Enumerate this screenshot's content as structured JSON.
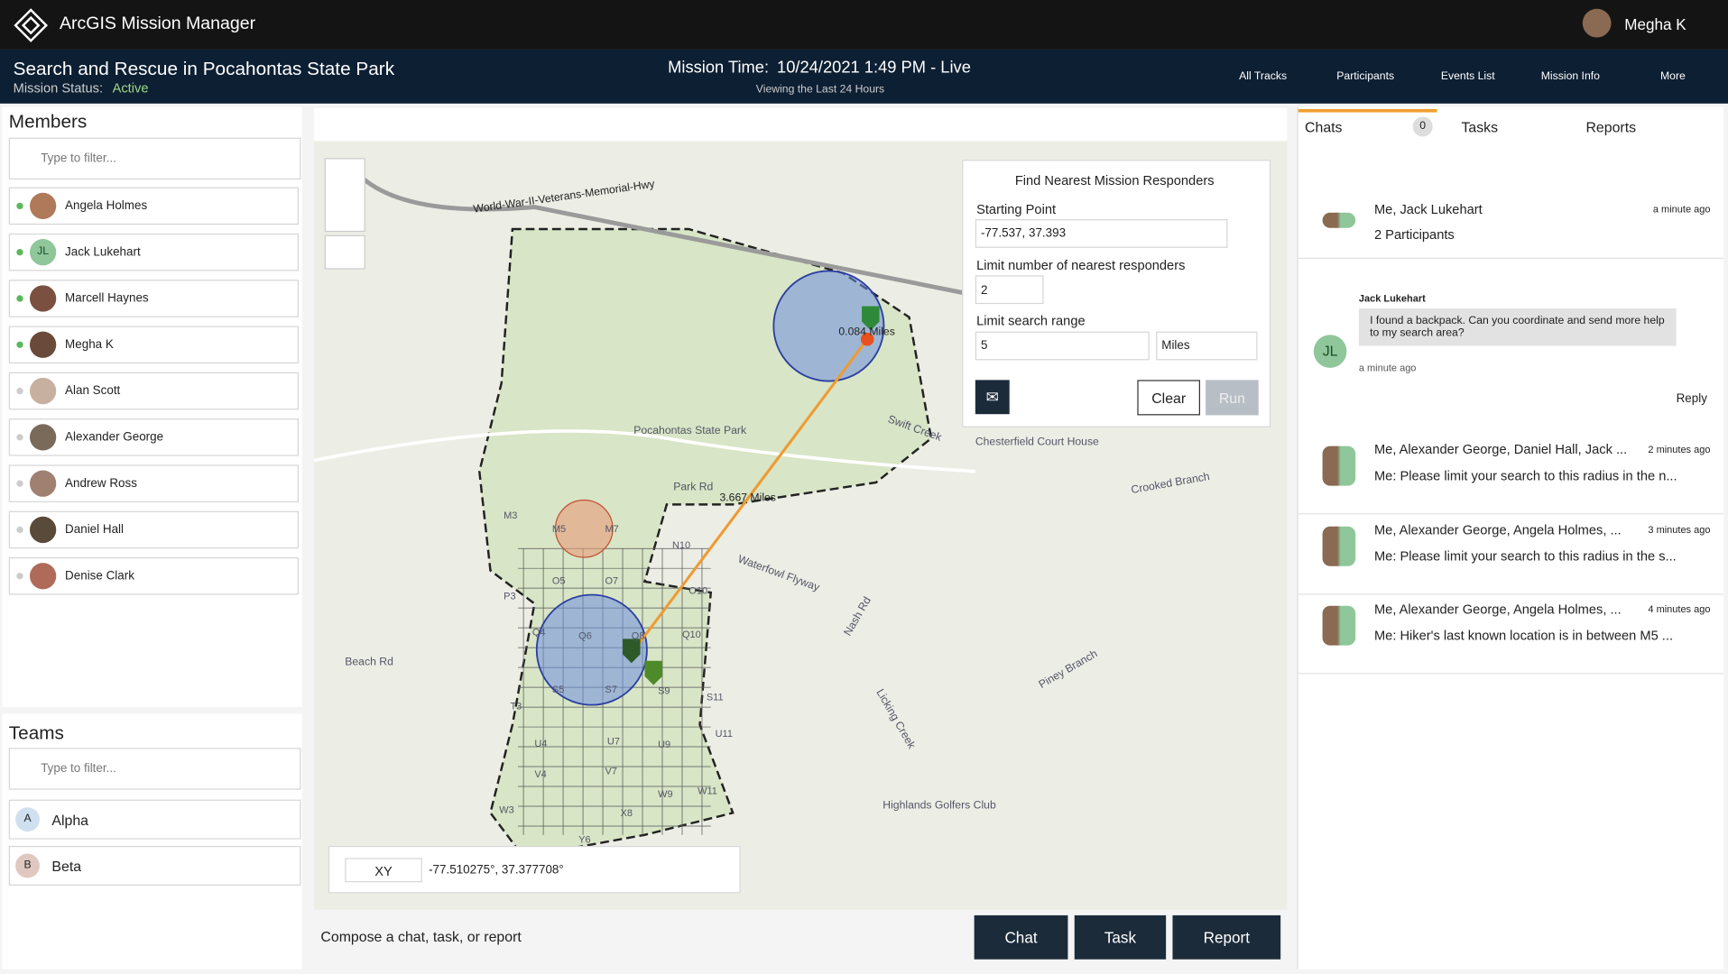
{
  "app": {
    "title": "ArcGIS Mission Manager",
    "user": "Megha K"
  },
  "mission": {
    "title": "Search and Rescue in Pocahontas State Park",
    "status_label": "Mission Status:",
    "status": "Active",
    "time_label": "Mission Time:",
    "time": "10/24/2021 1:49 PM - Live",
    "viewing": "Viewing the Last 24 Hours"
  },
  "toolbar": [
    "All Tracks",
    "Participants",
    "Events List",
    "Mission Info",
    "More"
  ],
  "members": {
    "title": "Members",
    "filter": "Type to filter...",
    "list": [
      {
        "name": "Angela Holmes"
      },
      {
        "name": "Jack Lukehart",
        "initials": "JL"
      },
      {
        "name": "Marcell Haynes"
      },
      {
        "name": "Megha K"
      },
      {
        "name": "Alan Scott"
      },
      {
        "name": "Alexander George"
      },
      {
        "name": "Andrew Ross"
      },
      {
        "name": "Daniel Hall"
      },
      {
        "name": "Denise Clark"
      }
    ]
  },
  "teams": {
    "title": "Teams",
    "filter": "Type to filter...",
    "list": [
      {
        "initial": "A",
        "name": "Alpha"
      },
      {
        "initial": "B",
        "name": "Beta"
      }
    ]
  },
  "finder": {
    "title": "Find Nearest Mission Responders",
    "start_label": "Starting Point",
    "start": "-77.537, 37.393",
    "limit_label": "Limit number of nearest responders",
    "limit": "2",
    "range_label": "Limit search range",
    "range": "5",
    "unit": "Miles",
    "clear": "Clear",
    "run": "Run"
  },
  "coords": {
    "mode": "XY",
    "value": "-77.510275°, 37.377708°"
  },
  "map_labels": [
    "World-War-II-Veterans-Memorial-Hwy",
    "0.084 Miles",
    "3.667 Miles",
    "Chesterfield Court House",
    "Pocahontas State Park",
    "Swift Creek",
    "Park Rd",
    "Beach Rd",
    "Crooked Branch",
    "Waterfowl Flyway",
    "Nash Rd",
    "Licking Creek",
    "Piney Branch",
    "Highlands Golfers Club",
    "M3",
    "M5",
    "M7",
    "N10",
    "O5",
    "O7",
    "O10",
    "P3",
    "Q4",
    "Q6",
    "Q8",
    "Q10",
    "S5",
    "S7",
    "S9",
    "S11",
    "T3",
    "U4",
    "U7",
    "U9",
    "U11",
    "V4",
    "V7",
    "W3",
    "W9",
    "W11",
    "X8",
    "Y6"
  ],
  "compose": {
    "prompt": "Compose a chat, task, or report",
    "buttons": [
      "Chat",
      "Task",
      "Report"
    ]
  },
  "tabs": {
    "chats": "Chats",
    "count": "0",
    "tasks": "Tasks",
    "reports": "Reports"
  },
  "conversations": [
    {
      "title": "Me, Jack Lukehart",
      "subtitle": "2 Participants",
      "time": "a minute ago"
    },
    {
      "title": "Me, Alexander George, Daniel Hall, Jack ...",
      "subtitle": "Me: Please limit your search to this radius in the n...",
      "time": "2 minutes ago"
    },
    {
      "title": "Me, Alexander George, Angela Holmes, ...",
      "subtitle": "Me: Please limit your search to this radius in the s...",
      "time": "3 minutes ago"
    },
    {
      "title": "Me, Alexander George, Angela Holmes, ...",
      "subtitle": "Me: Hiker's last known location is in between M5 ...",
      "time": "4 minutes ago"
    }
  ],
  "message": {
    "author": "Jack Lukehart",
    "initials": "JL",
    "text": "I found a backpack. Can you coordinate and send more help to my search area?",
    "time": "a minute ago",
    "reply": "Reply"
  }
}
